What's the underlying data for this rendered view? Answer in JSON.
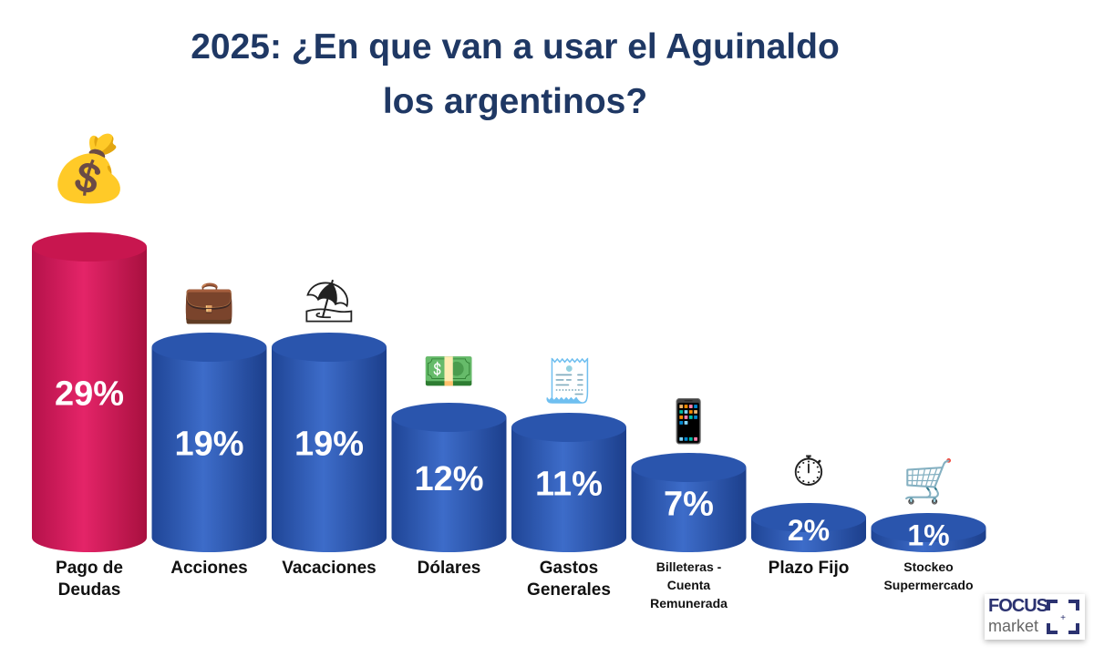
{
  "chart_data": {
    "type": "bar",
    "title": "2025: ¿En que van a usar el Aguinaldo los argentinos?",
    "title_lines": [
      "2025: ¿En que van a usar el Aguinaldo",
      "los argentinos?"
    ],
    "categories": [
      "Pago de Deudas",
      "Acciones",
      "Vacaciones",
      "Dólares",
      "Gastos Generales",
      "Billeteras - Cuenta Remunerada",
      "Plazo Fijo",
      "Stockeo Supermercado"
    ],
    "category_lines": [
      [
        "Pago de",
        "Deudas"
      ],
      [
        "Acciones"
      ],
      [
        "Vacaciones"
      ],
      [
        "Dólares"
      ],
      [
        "Gastos",
        "Generales"
      ],
      [
        "Billeteras -",
        "Cuenta",
        "Remunerada"
      ],
      [
        "Plazo Fijo"
      ],
      [
        "Stockeo",
        "Supermercado"
      ]
    ],
    "values": [
      29,
      19,
      19,
      12,
      11,
      7,
      2,
      1
    ],
    "data_labels": [
      "29%",
      "19%",
      "19%",
      "12%",
      "11%",
      "7%",
      "2%",
      "1%"
    ],
    "unit": "%",
    "ylim": [
      0,
      30
    ],
    "grid": false,
    "style": "3d-cylinder",
    "colors": {
      "highlight": "#d81b5a",
      "default": "#2f5bb7",
      "title": "#1f3864"
    },
    "icons": [
      "hand-money-bag-icon",
      "investment-bag-icon",
      "beach-umbrella-icon",
      "cash-hand-icon",
      "pos-terminal-icon",
      "phone-wallet-icon",
      "stopwatch-dollar-icon",
      "shopping-cart-icon"
    ]
  },
  "logo": {
    "line1": "FOCUS",
    "line2": "market"
  }
}
